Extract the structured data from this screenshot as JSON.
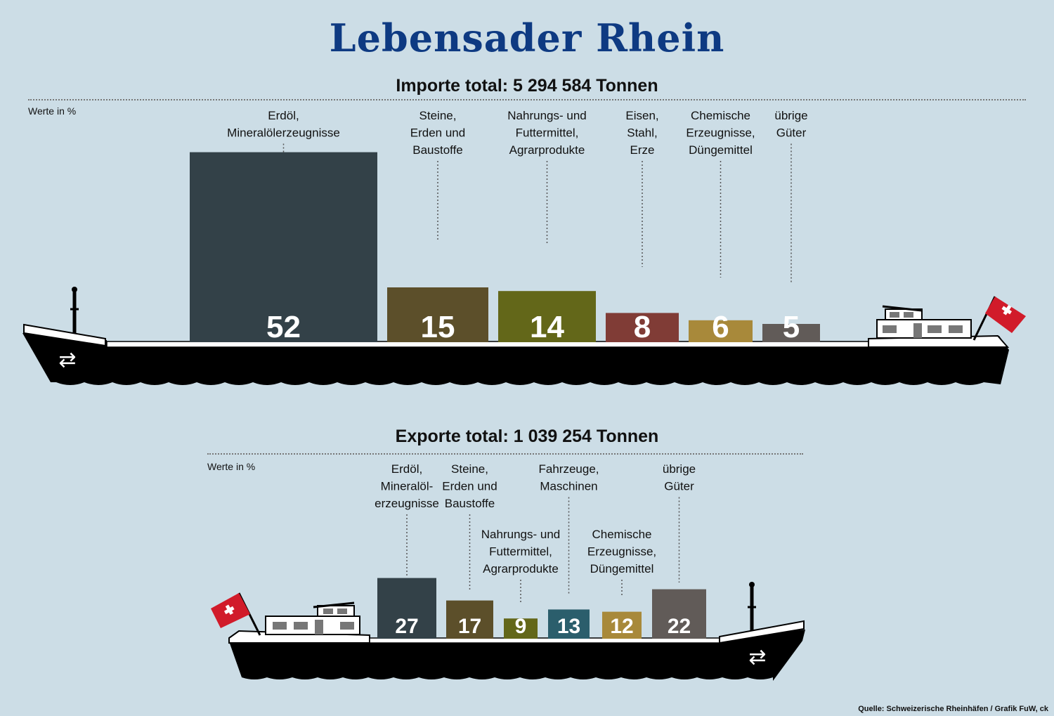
{
  "title": "Lebensader Rhein",
  "source": "Quelle: Schweizerische Rheinhäfen / Grafik FuW, ck",
  "chart_data": [
    {
      "type": "bar",
      "title": "Importe total: 5 294 584 Tonnen",
      "ylabel": "Werte in %",
      "ylim": [
        0,
        52
      ],
      "categories": [
        "Erdöl,\nMineralölerzeugnisse",
        "Steine,\nErden und\nBaustoffe",
        "Nahrungs- und\nFuttermittel,\nAgrarprodukte",
        "Eisen,\nStahl,\nErze",
        "Chemische\nErzeugnisse,\nDüngemittel",
        "übrige\nGüter"
      ],
      "values": [
        52,
        15,
        14,
        8,
        6,
        5
      ],
      "colors": [
        "#334148",
        "#5c4f2a",
        "#636719",
        "#803c36",
        "#a8893a",
        "#615b58"
      ]
    },
    {
      "type": "bar",
      "title": "Exporte total: 1 039 254 Tonnen",
      "ylabel": "Werte   in %",
      "ylim": [
        0,
        27
      ],
      "categories": [
        "Erdöl,\nMineralöl-\nerzeugnisse",
        "Steine,\nErden und\nBaustoffe",
        "Nahrungs- und\nFuttermittel,\nAgrarprodukte",
        "Fahrzeuge,\nMaschinen",
        "Chemische\nErzeugnisse,\nDüngemittel",
        "übrige\nGüter"
      ],
      "values": [
        27,
        17,
        9,
        13,
        12,
        22
      ],
      "colors": [
        "#334148",
        "#5c4f2a",
        "#636719",
        "#2b5e6c",
        "#a8893a",
        "#615b58"
      ]
    }
  ]
}
